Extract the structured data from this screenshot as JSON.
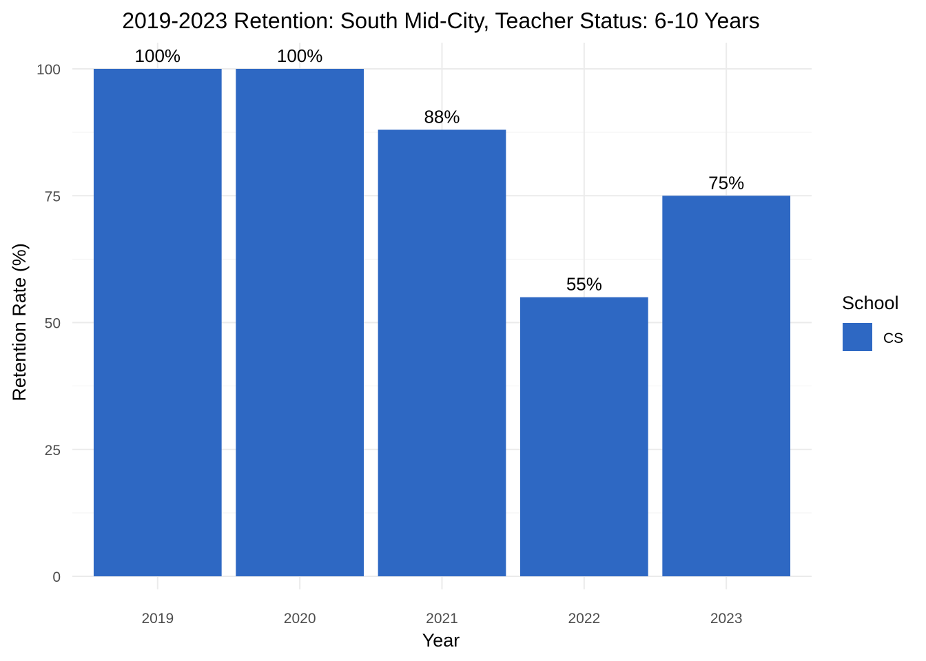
{
  "chart_data": {
    "type": "bar",
    "title": "2019-2023 Retention: South Mid-City, Teacher Status: 6-10 Years",
    "xlabel": "Year",
    "ylabel": "Retention Rate (%)",
    "categories": [
      "2019",
      "2020",
      "2021",
      "2022",
      "2023"
    ],
    "series": [
      {
        "name": "CS",
        "values": [
          100,
          100,
          88,
          55,
          75
        ],
        "labels": [
          "100%",
          "100%",
          "88%",
          "55%",
          "75%"
        ],
        "color": "#2e68c3"
      }
    ],
    "ylim": [
      0,
      105
    ],
    "yticks": [
      0,
      25,
      50,
      75,
      100
    ],
    "yticks_minor": [
      12.5,
      37.5,
      62.5,
      87.5
    ],
    "grid": true,
    "legend": {
      "title": "School",
      "placement": "right"
    }
  }
}
